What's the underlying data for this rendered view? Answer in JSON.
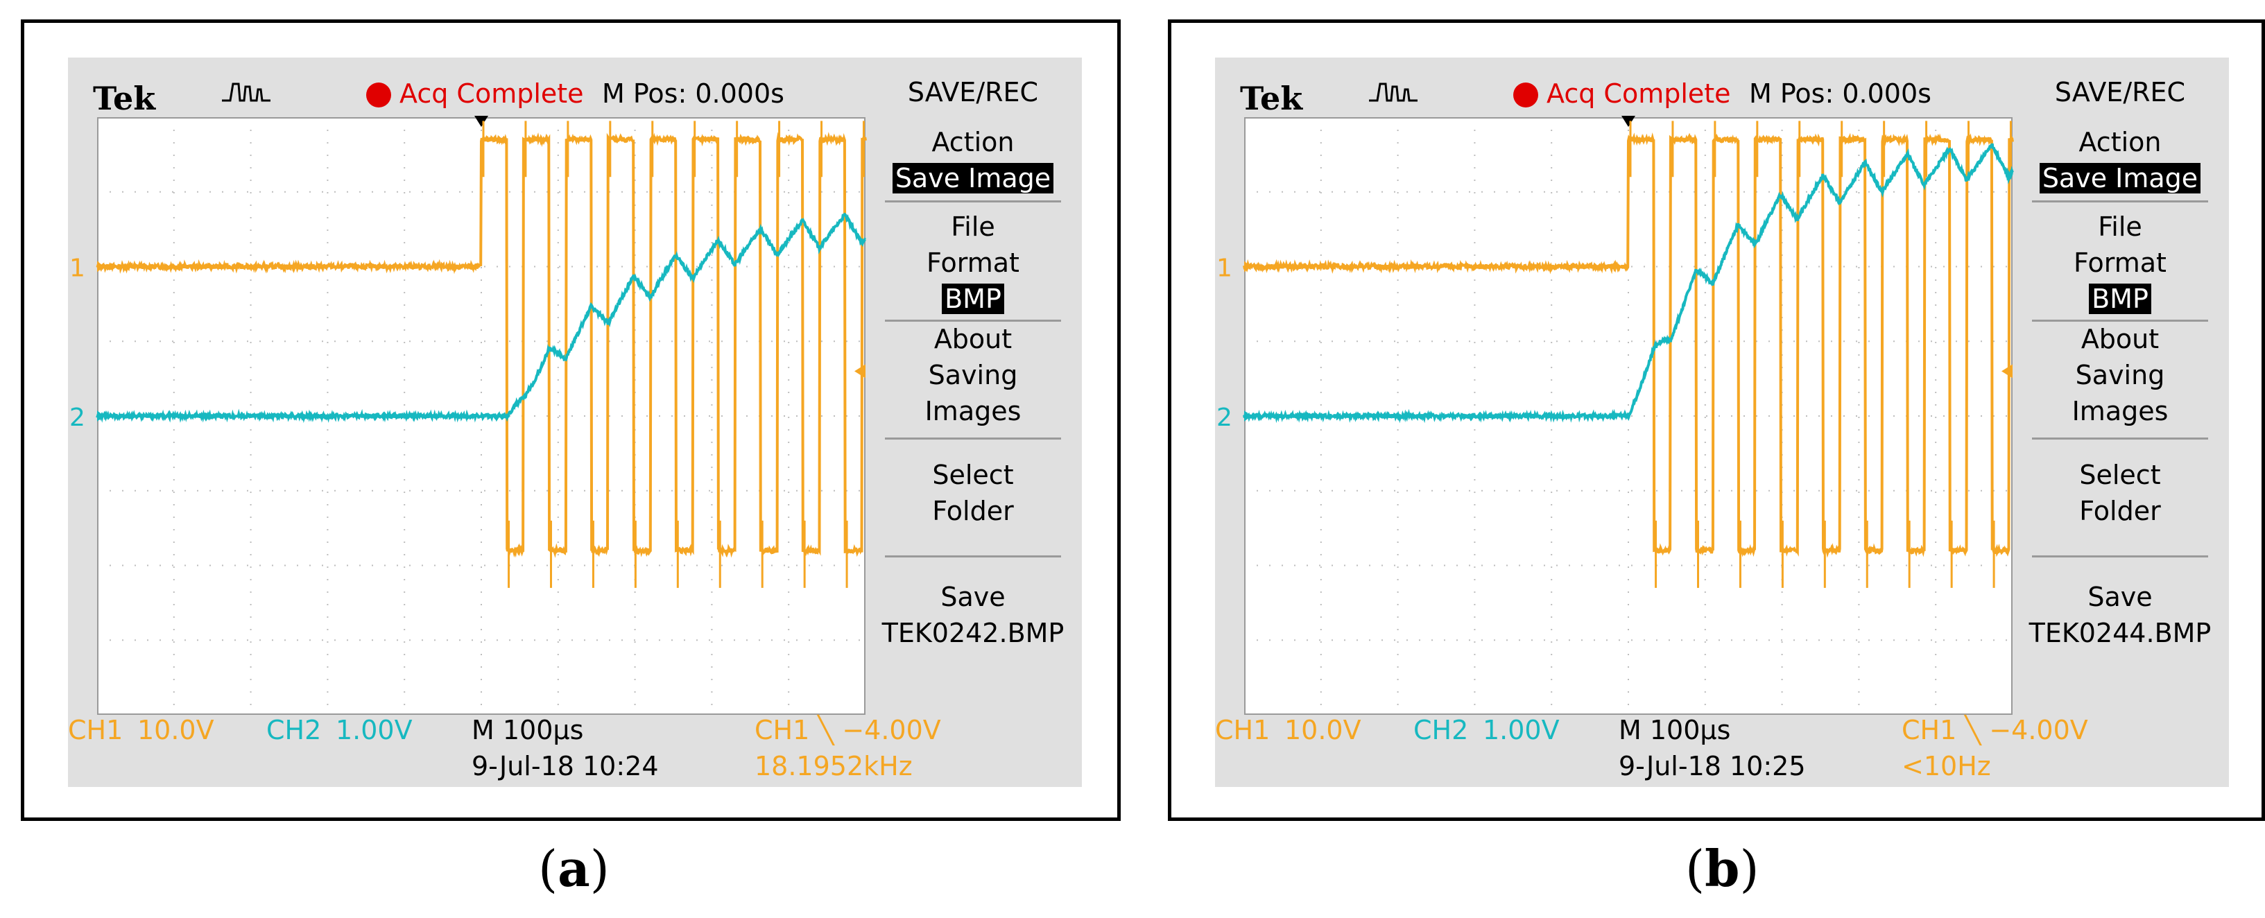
{
  "chart_data": [
    {
      "type": "line",
      "panel_label": "a",
      "header": {
        "brand": "Tek",
        "status": "Acq Complete",
        "mpos": "M Pos: 0.000s"
      },
      "menu": {
        "title": "SAVE/REC",
        "action_label": "Action",
        "action_value": "Save Image",
        "file_format_label_1": "File",
        "file_format_label_2": "Format",
        "file_format_value": "BMP",
        "about_1": "About",
        "about_2": "Saving",
        "about_3": "Images",
        "select_1": "Select",
        "select_2": "Folder",
        "save_label": "Save",
        "save_file": "TEK0242.BMP"
      },
      "readout": {
        "ch1": "CH1",
        "ch1_scale": "10.0V",
        "ch2": "CH2",
        "ch2_scale": "1.00V",
        "timebase": "M 100µs",
        "trigger": "CH1 ╲ −4.00V",
        "date": "9-Jul-18 10:24",
        "freq": "18.1952kHz"
      },
      "markers": {
        "ch1": "1",
        "ch2": "2"
      },
      "colors": {
        "ch1": "#f5a623",
        "ch2": "#17b8c0"
      },
      "x_divisions": 10,
      "y_divisions": 8,
      "time_per_div_us": 100,
      "ch1_volts_per_div": 10.0,
      "ch2_volts_per_div": 1.0,
      "step_time_div": 5.0,
      "ch2_rise_delay_div": 0.35,
      "pwm_period_div": 0.55,
      "pwm_duty": 0.6,
      "series": [
        {
          "name": "CH1",
          "baseline_div": 2.0,
          "high_div": 3.7,
          "low_div": -1.8
        },
        {
          "name": "CH2",
          "baseline_div": 0.0,
          "final_div": 2.7,
          "tau_div": 1.7,
          "ripple_div": 0.4
        }
      ]
    },
    {
      "type": "line",
      "panel_label": "b",
      "header": {
        "brand": "Tek",
        "status": "Acq Complete",
        "mpos": "M Pos: 0.000s"
      },
      "menu": {
        "title": "SAVE/REC",
        "action_label": "Action",
        "action_value": "Save Image",
        "file_format_label_1": "File",
        "file_format_label_2": "Format",
        "file_format_value": "BMP",
        "about_1": "About",
        "about_2": "Saving",
        "about_3": "Images",
        "select_1": "Select",
        "select_2": "Folder",
        "save_label": "Save",
        "save_file": "TEK0244.BMP"
      },
      "readout": {
        "ch1": "CH1",
        "ch1_scale": "10.0V",
        "ch2": "CH2",
        "ch2_scale": "1.00V",
        "timebase": "M 100µs",
        "trigger": "CH1 ╲ −4.00V",
        "date": "9-Jul-18 10:25",
        "freq": "<10Hz"
      },
      "markers": {
        "ch1": "1",
        "ch2": "2"
      },
      "colors": {
        "ch1": "#f5a623",
        "ch2": "#17b8c0"
      },
      "x_divisions": 10,
      "y_divisions": 8,
      "time_per_div_us": 100,
      "ch1_volts_per_div": 10.0,
      "ch2_volts_per_div": 1.0,
      "step_time_div": 5.0,
      "ch2_rise_delay_div": 0.0,
      "pwm_period_div": 0.55,
      "pwm_duty": 0.6,
      "series": [
        {
          "name": "CH1",
          "baseline_div": 2.0,
          "high_div": 3.7,
          "low_div": -1.8
        },
        {
          "name": "CH2",
          "baseline_div": 0.0,
          "final_div": 3.5,
          "tau_div": 1.3,
          "ripple_div": 0.45
        }
      ]
    }
  ]
}
